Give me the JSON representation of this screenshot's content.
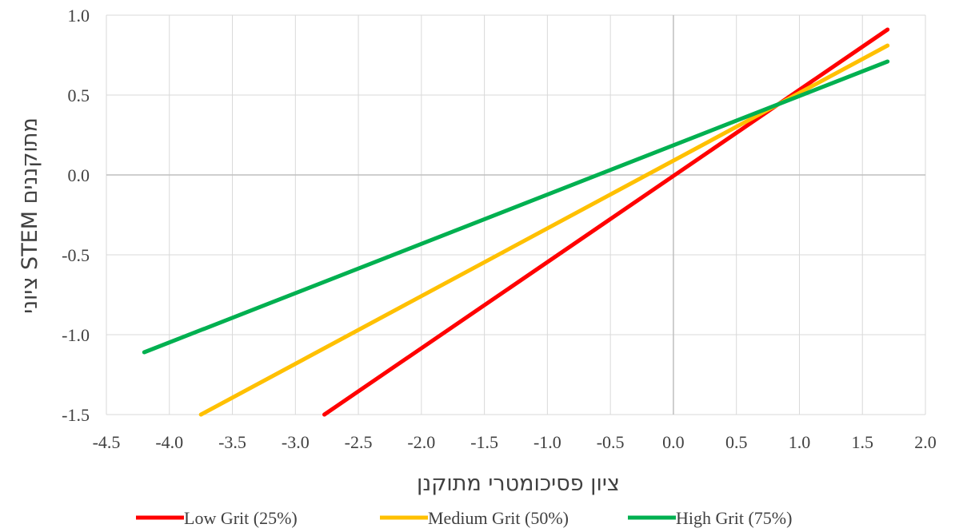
{
  "chart_data": {
    "type": "line",
    "title": "",
    "xlabel": "ציון פסיכומטרי מתוקנן",
    "ylabel": "ציוני STEM מתוקננים",
    "xlim": [
      -4.5,
      2.0
    ],
    "ylim": [
      -1.5,
      1.0
    ],
    "x_ticks": [
      "-4.5",
      "-4.0",
      "-3.5",
      "-3.0",
      "-2.5",
      "-2.0",
      "-1.5",
      "-1.0",
      "-0.5",
      "0.0",
      "0.5",
      "1.0",
      "1.5",
      "2.0"
    ],
    "y_ticks": [
      "1.0",
      "0.5",
      "0.0",
      "-0.5",
      "-1.0",
      "-1.5"
    ],
    "grid": true,
    "legend_position": "bottom",
    "series": [
      {
        "name": "Low Grit (25%)",
        "color": "#ff0000",
        "points": [
          [
            -2.77,
            -1.5
          ],
          [
            1.7,
            0.91
          ]
        ]
      },
      {
        "name": "Medium Grit (50%)",
        "color": "#ffc000",
        "points": [
          [
            -3.75,
            -1.5
          ],
          [
            1.7,
            0.81
          ]
        ]
      },
      {
        "name": "High  Grit (75%)",
        "color": "#00b050",
        "points": [
          [
            -4.2,
            -1.11
          ],
          [
            1.7,
            0.71
          ]
        ]
      }
    ]
  }
}
